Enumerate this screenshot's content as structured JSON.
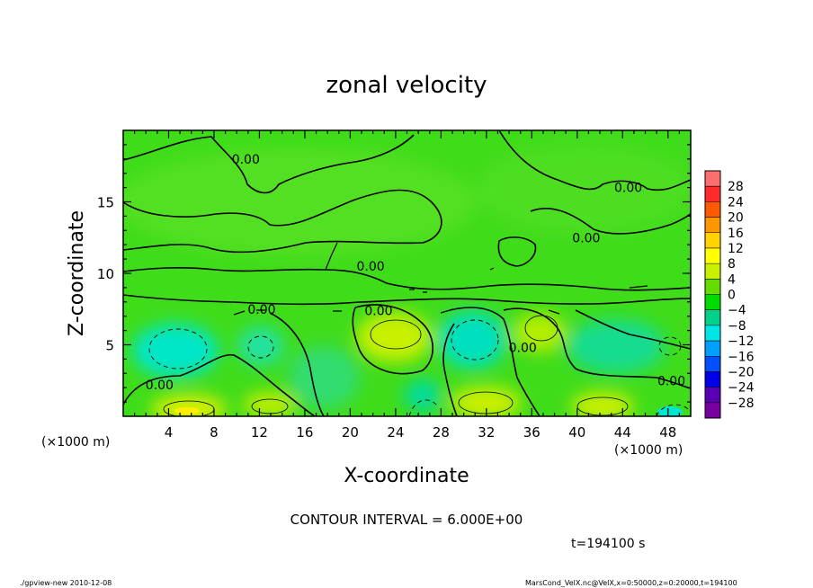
{
  "chart_data": {
    "type": "heatmap",
    "title": "zonal velocity",
    "xlabel": "X-coordinate",
    "ylabel": "Z-coordinate",
    "x_unit_left": "(×1000 m)",
    "x_unit_right": "(×1000 m)",
    "xlim": [
      0,
      50
    ],
    "ylim": [
      0,
      20
    ],
    "x_ticks": [
      4,
      8,
      12,
      16,
      20,
      24,
      28,
      32,
      36,
      40,
      44,
      48
    ],
    "y_ticks": [
      5,
      10,
      15
    ],
    "contour_interval_text": "CONTOUR INTERVAL = 6.000E+00",
    "time_text": "t=194100 s",
    "footer_left": "./gpview-new  2010-12-08",
    "footer_right": "MarsCond_VelX.nc@VelX,x=0:50000,z=0:20000,t=194100",
    "contour_labels": [
      {
        "text": "0.00",
        "x": 10.8,
        "z": 18.0
      },
      {
        "text": "0.00",
        "x": 44.5,
        "z": 16.0
      },
      {
        "text": "0.00",
        "x": 40.8,
        "z": 12.5
      },
      {
        "text": "0.00",
        "x": 21.8,
        "z": 10.5
      },
      {
        "text": "0.00",
        "x": 12.2,
        "z": 7.5
      },
      {
        "text": "0.00",
        "x": 22.5,
        "z": 7.4
      },
      {
        "text": "0.00",
        "x": 35.2,
        "z": 4.8
      },
      {
        "text": "0.00",
        "x": 3.2,
        "z": 2.2
      },
      {
        "text": "0.00",
        "x": 48.3,
        "z": 2.5
      }
    ],
    "colorbar": {
      "levels": [
        "28",
        "24",
        "20",
        "16",
        "12",
        "8",
        "4",
        "0",
        "−4",
        "−8",
        "−12",
        "−16",
        "−20",
        "−24",
        "−28"
      ],
      "colors": [
        "#ff6e6e",
        "#ff2a2a",
        "#ff5a00",
        "#ff9600",
        "#ffd200",
        "#ffff00",
        "#c8f000",
        "#64dc00",
        "#00dc00",
        "#00d28c",
        "#00e6e6",
        "#00a0ff",
        "#0050ff",
        "#0000e6",
        "#5a00b4",
        "#7800a0"
      ]
    }
  }
}
